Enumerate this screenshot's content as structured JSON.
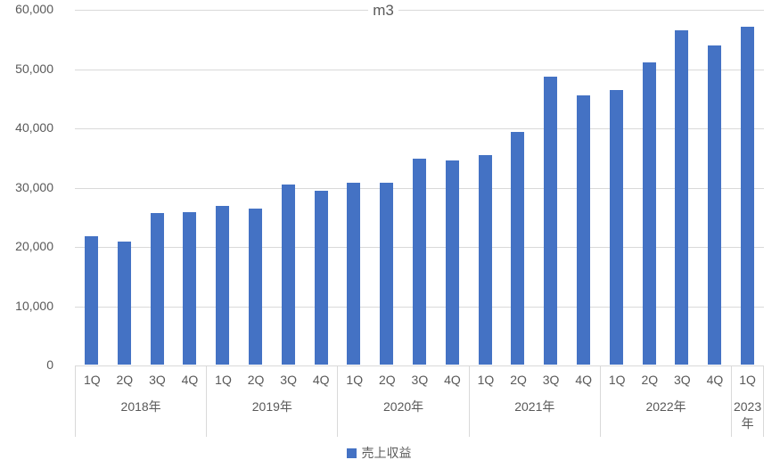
{
  "title": "m3",
  "legend": {
    "label": "売上収益",
    "color": "#4472C4"
  },
  "colors": {
    "bar": "#4472C4",
    "gridline": "#D9D9D9",
    "text": "#595959",
    "background": "#FFFFFF"
  },
  "chart_data": {
    "type": "bar",
    "title": "m3",
    "xlabel": "",
    "ylabel": "",
    "series_name": "売上収益",
    "ylim": [
      0,
      60000
    ],
    "ytick_interval": 10000,
    "ytick_labels": [
      "60,000",
      "50,000",
      "40,000",
      "30,000",
      "20,000",
      "10,000",
      "0"
    ],
    "grid": true,
    "legend_position": "bottom",
    "bar_color": "#4472C4",
    "groups": [
      {
        "year": "2018年",
        "quarters": [
          "1Q",
          "2Q",
          "3Q",
          "4Q"
        ],
        "values": [
          21700,
          20800,
          25700,
          25800
        ]
      },
      {
        "year": "2019年",
        "quarters": [
          "1Q",
          "2Q",
          "3Q",
          "4Q"
        ],
        "values": [
          26900,
          26400,
          30400,
          29400
        ]
      },
      {
        "year": "2020年",
        "quarters": [
          "1Q",
          "2Q",
          "3Q",
          "4Q"
        ],
        "values": [
          30800,
          30800,
          34800,
          34600
        ]
      },
      {
        "year": "2021年",
        "quarters": [
          "1Q",
          "2Q",
          "3Q",
          "4Q"
        ],
        "values": [
          35400,
          39400,
          48700,
          45500
        ]
      },
      {
        "year": "2022年",
        "quarters": [
          "1Q",
          "2Q",
          "3Q",
          "4Q"
        ],
        "values": [
          46400,
          51100,
          56600,
          54000
        ]
      },
      {
        "year": "2023年",
        "quarters": [
          "1Q"
        ],
        "values": [
          57100
        ]
      }
    ]
  }
}
